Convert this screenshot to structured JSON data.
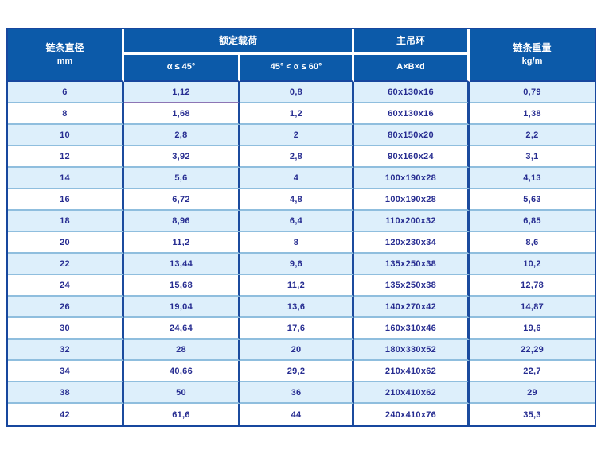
{
  "colors": {
    "header_bg": "#0c5aa9",
    "header_text": "#ffffff",
    "row_bg": "#ffffff",
    "row_alt_bg": "#ddeffb",
    "col_divider": "#1b4b9e",
    "row_divider": "#8fbede",
    "outer_border": "#17479e",
    "special_divider": "#8d75b4",
    "cell_text": "#272d91"
  },
  "table": {
    "header": {
      "diameter_title": "链条直径",
      "diameter_unit": "mm",
      "rated_load_group": "额定载荷",
      "alpha_le_45": "α ≤ 45°",
      "alpha_45_60": "45° < α ≤ 60°",
      "master_link_group": "主吊环",
      "master_link_sub": "A×B×d",
      "weight_title": "链条重量",
      "weight_unit": "kg/m"
    },
    "rows": [
      [
        "6",
        "1,12",
        "0,8",
        "60x130x16",
        "0,79"
      ],
      [
        "8",
        "1,68",
        "1,2",
        "60x130x16",
        "1,38"
      ],
      [
        "10",
        "2,8",
        "2",
        "80x150x20",
        "2,2"
      ],
      [
        "12",
        "3,92",
        "2,8",
        "90x160x24",
        "3,1"
      ],
      [
        "14",
        "5,6",
        "4",
        "100x190x28",
        "4,13"
      ],
      [
        "16",
        "6,72",
        "4,8",
        "100x190x28",
        "5,63"
      ],
      [
        "18",
        "8,96",
        "6,4",
        "110x200x32",
        "6,85"
      ],
      [
        "20",
        "11,2",
        "8",
        "120x230x34",
        "8,6"
      ],
      [
        "22",
        "13,44",
        "9,6",
        "135x250x38",
        "10,2"
      ],
      [
        "24",
        "15,68",
        "11,2",
        "135x250x38",
        "12,78"
      ],
      [
        "26",
        "19,04",
        "13,6",
        "140x270x42",
        "14,87"
      ],
      [
        "30",
        "24,64",
        "17,6",
        "160x310x46",
        "19,6"
      ],
      [
        "32",
        "28",
        "20",
        "180x330x52",
        "22,29"
      ],
      [
        "34",
        "40,66",
        "29,2",
        "210x410x62",
        "22,7"
      ],
      [
        "38",
        "50",
        "36",
        "210x410x62",
        "29"
      ],
      [
        "42",
        "61,6",
        "44",
        "240x410x76",
        "35,3"
      ]
    ]
  },
  "chart_data": {
    "type": "table",
    "title": "",
    "columns": [
      "链条直径 mm",
      "额定载荷 α ≤ 45°",
      "额定载荷 45° < α ≤ 60°",
      "主吊环 A×B×d",
      "链条重量 kg/m"
    ],
    "rows": [
      [
        "6",
        "1,12",
        "0,8",
        "60x130x16",
        "0,79"
      ],
      [
        "8",
        "1,68",
        "1,2",
        "60x130x16",
        "1,38"
      ],
      [
        "10",
        "2,8",
        "2",
        "80x150x20",
        "2,2"
      ],
      [
        "12",
        "3,92",
        "2,8",
        "90x160x24",
        "3,1"
      ],
      [
        "14",
        "5,6",
        "4",
        "100x190x28",
        "4,13"
      ],
      [
        "16",
        "6,72",
        "4,8",
        "100x190x28",
        "5,63"
      ],
      [
        "18",
        "8,96",
        "6,4",
        "110x200x32",
        "6,85"
      ],
      [
        "20",
        "11,2",
        "8",
        "120x230x34",
        "8,6"
      ],
      [
        "22",
        "13,44",
        "9,6",
        "135x250x38",
        "10,2"
      ],
      [
        "24",
        "15,68",
        "11,2",
        "135x250x38",
        "12,78"
      ],
      [
        "26",
        "19,04",
        "13,6",
        "140x270x42",
        "14,87"
      ],
      [
        "30",
        "24,64",
        "17,6",
        "160x310x46",
        "19,6"
      ],
      [
        "32",
        "28",
        "20",
        "180x330x52",
        "22,29"
      ],
      [
        "34",
        "40,66",
        "29,2",
        "210x410x62",
        "22,7"
      ],
      [
        "38",
        "50",
        "36",
        "210x410x62",
        "29"
      ],
      [
        "42",
        "61,6",
        "44",
        "240x410x76",
        "35,3"
      ]
    ],
    "layout": {
      "header_rows": 2,
      "alternating_row_shading": true,
      "grid": "on"
    }
  }
}
